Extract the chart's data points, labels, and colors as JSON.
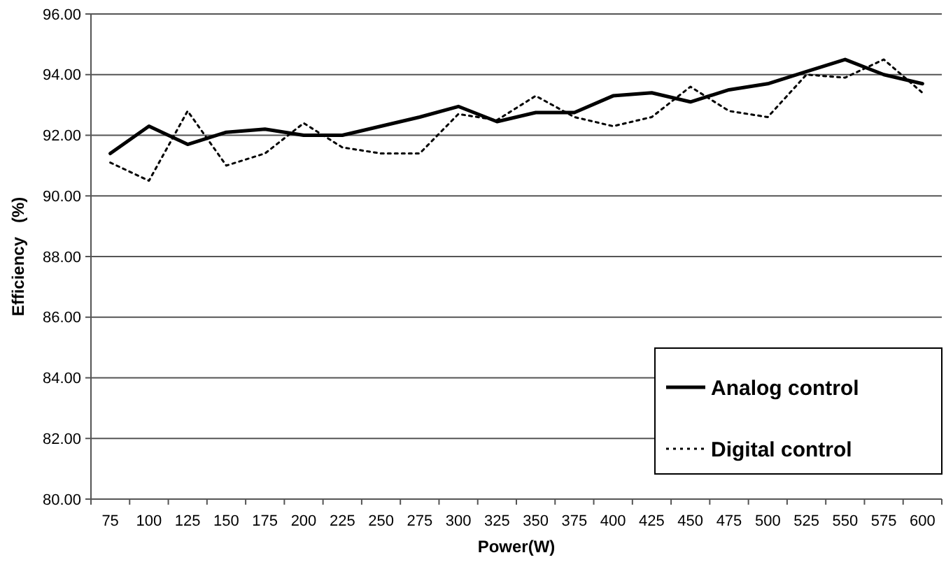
{
  "chart_data": {
    "type": "line",
    "xlabel": "Power(W)",
    "ylabel": "Efficiency   (%)",
    "categories": [
      "75",
      "100",
      "125",
      "150",
      "175",
      "200",
      "225",
      "250",
      "275",
      "300",
      "325",
      "350",
      "375",
      "400",
      "425",
      "450",
      "475",
      "500",
      "525",
      "550",
      "575",
      "600"
    ],
    "series": [
      {
        "name": "Analog control",
        "color": "#000000",
        "line_style": "solid",
        "values": [
          91.4,
          92.3,
          91.7,
          92.1,
          92.2,
          92.0,
          92.0,
          92.3,
          92.6,
          92.95,
          92.45,
          92.75,
          92.75,
          93.3,
          93.4,
          93.1,
          93.5,
          93.7,
          94.1,
          94.5,
          94.0,
          93.7
        ]
      },
      {
        "name": "Digital control",
        "color": "#000000",
        "line_style": "dotted",
        "values": [
          91.1,
          90.5,
          92.8,
          91.0,
          91.4,
          92.4,
          91.6,
          91.4,
          91.4,
          92.7,
          92.5,
          93.3,
          92.6,
          92.3,
          92.6,
          93.6,
          92.8,
          92.6,
          94.0,
          93.9,
          94.5,
          93.4
        ]
      }
    ],
    "ylim": [
      80,
      96
    ],
    "yticks": [
      {
        "value": 80,
        "label": "80.00"
      },
      {
        "value": 82,
        "label": "82.00"
      },
      {
        "value": 84,
        "label": "84.00"
      },
      {
        "value": 86,
        "label": "86.00"
      },
      {
        "value": 88,
        "label": "88.00"
      },
      {
        "value": 90,
        "label": "90.00"
      },
      {
        "value": 92,
        "label": "92.00"
      },
      {
        "value": 94,
        "label": "94.00"
      },
      {
        "value": 96,
        "label": "96.00"
      }
    ],
    "grid": "y",
    "legend": "bottom right",
    "marker": "none"
  }
}
